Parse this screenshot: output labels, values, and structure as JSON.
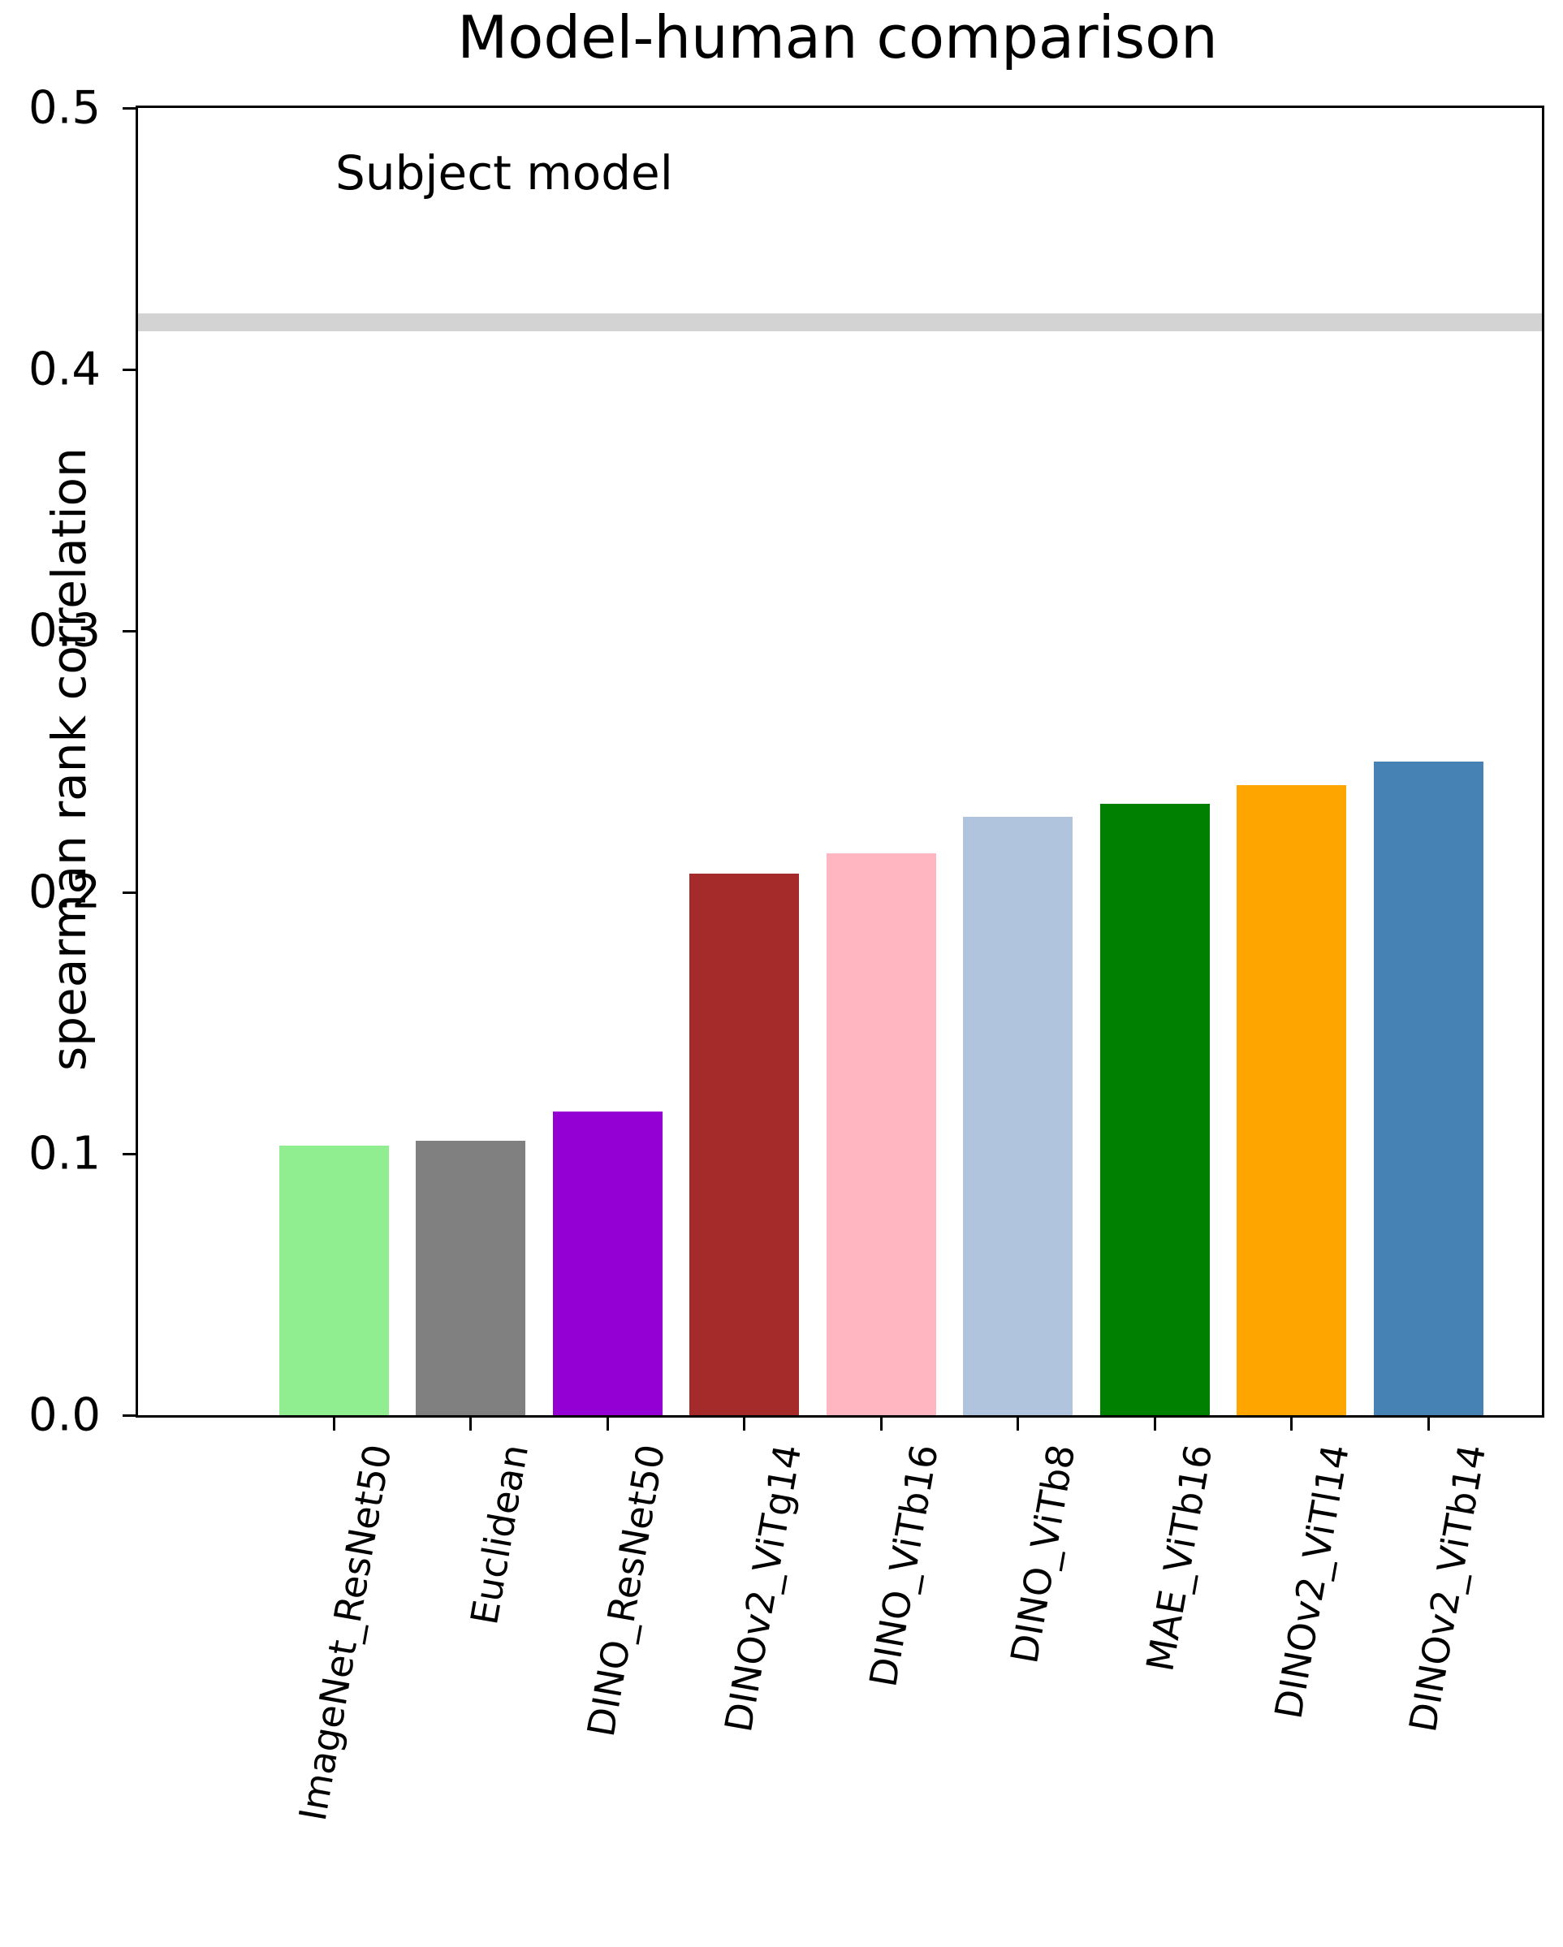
{
  "title": "Model-human comparison",
  "annotation": {
    "subject_model_label": "Subject model"
  },
  "chart_data": {
    "type": "bar",
    "title": "Model-human comparison",
    "xlabel": "",
    "ylabel": "spearman rank correlation",
    "ylim": [
      0.0,
      0.5
    ],
    "yticks": [
      "0.0",
      "0.1",
      "0.2",
      "0.3",
      "0.4",
      "0.5"
    ],
    "grid": false,
    "legend_position": "none",
    "x_tick_rotation_deg": 80,
    "categories": [
      "ImageNet_ResNet50",
      "Euclidean",
      "DINO_ResNet50",
      "DINOv2_ViTg14",
      "DINO_ViTb16",
      "DINO_ViTb8",
      "MAE_ViTb16",
      "DINOv2_ViTl14",
      "DINOv2_ViTb14"
    ],
    "values": [
      0.103,
      0.105,
      0.116,
      0.207,
      0.215,
      0.229,
      0.234,
      0.241,
      0.25
    ],
    "bar_colors": [
      "#90EE90",
      "#808080",
      "#9400D3",
      "#A52A2A",
      "#FFB6C1",
      "#B0C4DE",
      "#008000",
      "#FFA500",
      "#4682B4"
    ],
    "reference_line": {
      "label": "Subject model",
      "value": 0.418,
      "color": "#D3D3D3"
    },
    "axis_color": "#000000",
    "background_color": "#FFFFFF"
  }
}
